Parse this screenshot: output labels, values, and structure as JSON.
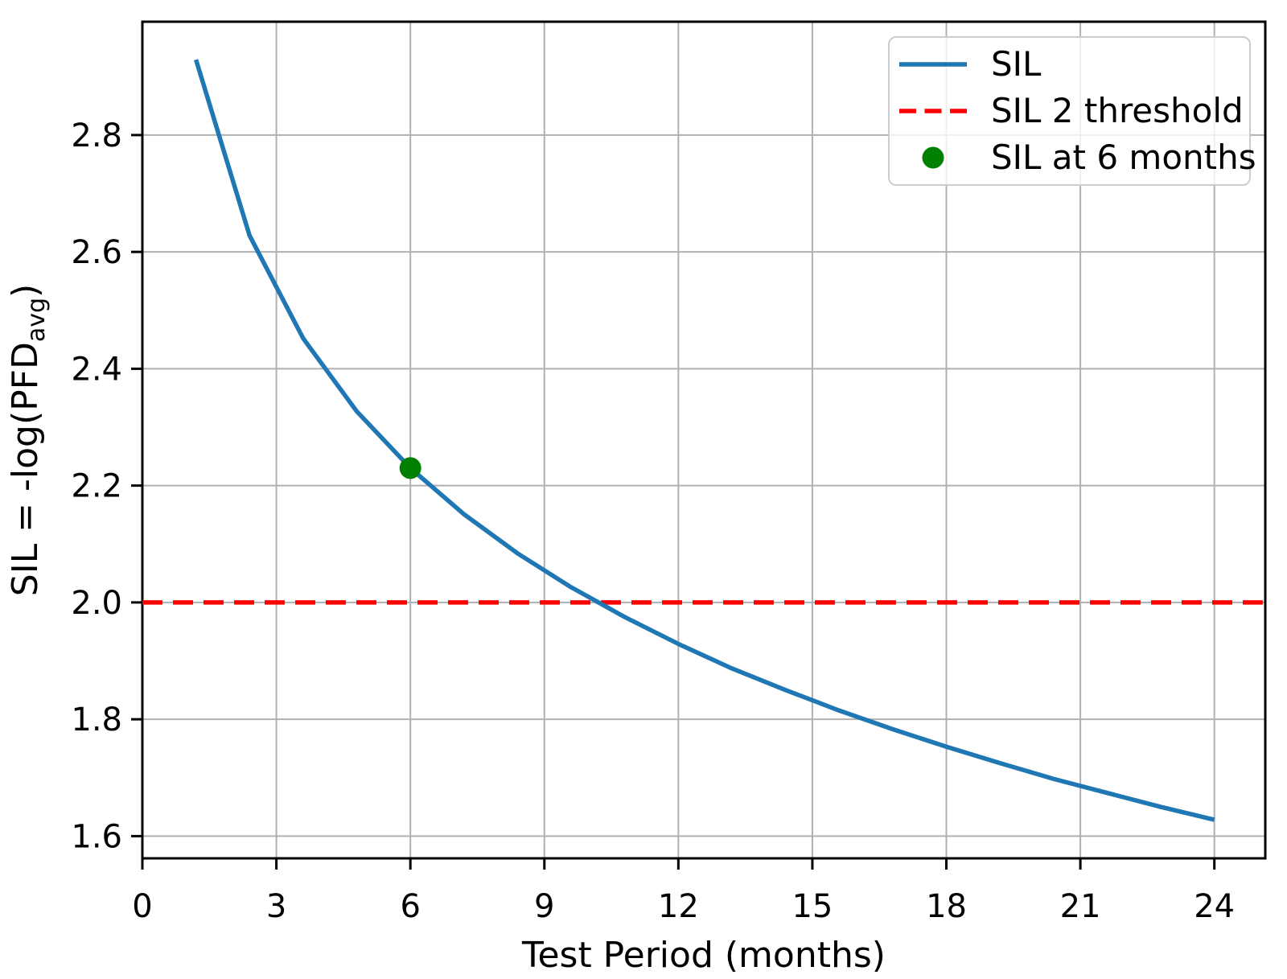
{
  "figure": {
    "background": "#ffffff"
  },
  "colors": {
    "grid": "#b0b0b0",
    "spine": "#000000",
    "text": "#000000",
    "sil_line": "#1f77b4",
    "threshold_line": "#ff0000",
    "marker": "#008000",
    "legend_edge": "#cccccc",
    "legend_bg": "rgba(255,255,255,0.8)"
  },
  "chart_data": {
    "type": "line",
    "title": "",
    "xlabel": "Test Period (months)",
    "ylabel_pre": "SIL = -log(PFD",
    "ylabel_sub": "avg",
    "ylabel_post": ")",
    "xlim": [
      0,
      25.14
    ],
    "ylim": [
      1.562,
      2.994
    ],
    "xticks": [
      0,
      3,
      6,
      9,
      12,
      15,
      18,
      21,
      24
    ],
    "yticks": [
      1.6,
      1.8,
      2.0,
      2.2,
      2.4,
      2.6,
      2.8
    ],
    "grid": true,
    "legend_position": "upper right",
    "series": [
      {
        "name": "SIL",
        "type": "line",
        "color": "#1f77b4",
        "x": [
          1.2,
          2.4,
          3.6,
          4.8,
          6.0,
          7.2,
          8.4,
          9.6,
          10.8,
          12.0,
          13.2,
          14.4,
          15.6,
          16.8,
          18.0,
          19.2,
          20.4,
          21.6,
          22.8,
          24.0
        ],
        "y": [
          2.929,
          2.628,
          2.452,
          2.327,
          2.23,
          2.151,
          2.084,
          2.026,
          1.975,
          1.929,
          1.887,
          1.85,
          1.815,
          1.783,
          1.753,
          1.725,
          1.698,
          1.674,
          1.65,
          1.628
        ]
      },
      {
        "name": "SIL 2 threshold",
        "type": "hline",
        "color": "#ff0000",
        "y": 2.0,
        "dashed": true
      },
      {
        "name": "SIL at 6 months",
        "type": "scatter",
        "color": "#008000",
        "x": [
          6
        ],
        "y": [
          2.23
        ]
      }
    ],
    "legend": [
      {
        "label": "SIL",
        "marker": "line",
        "color": "#1f77b4"
      },
      {
        "label": "SIL 2 threshold",
        "marker": "dashed-line",
        "color": "#ff0000"
      },
      {
        "label": "SIL at 6 months",
        "marker": "dot",
        "color": "#008000"
      }
    ]
  }
}
